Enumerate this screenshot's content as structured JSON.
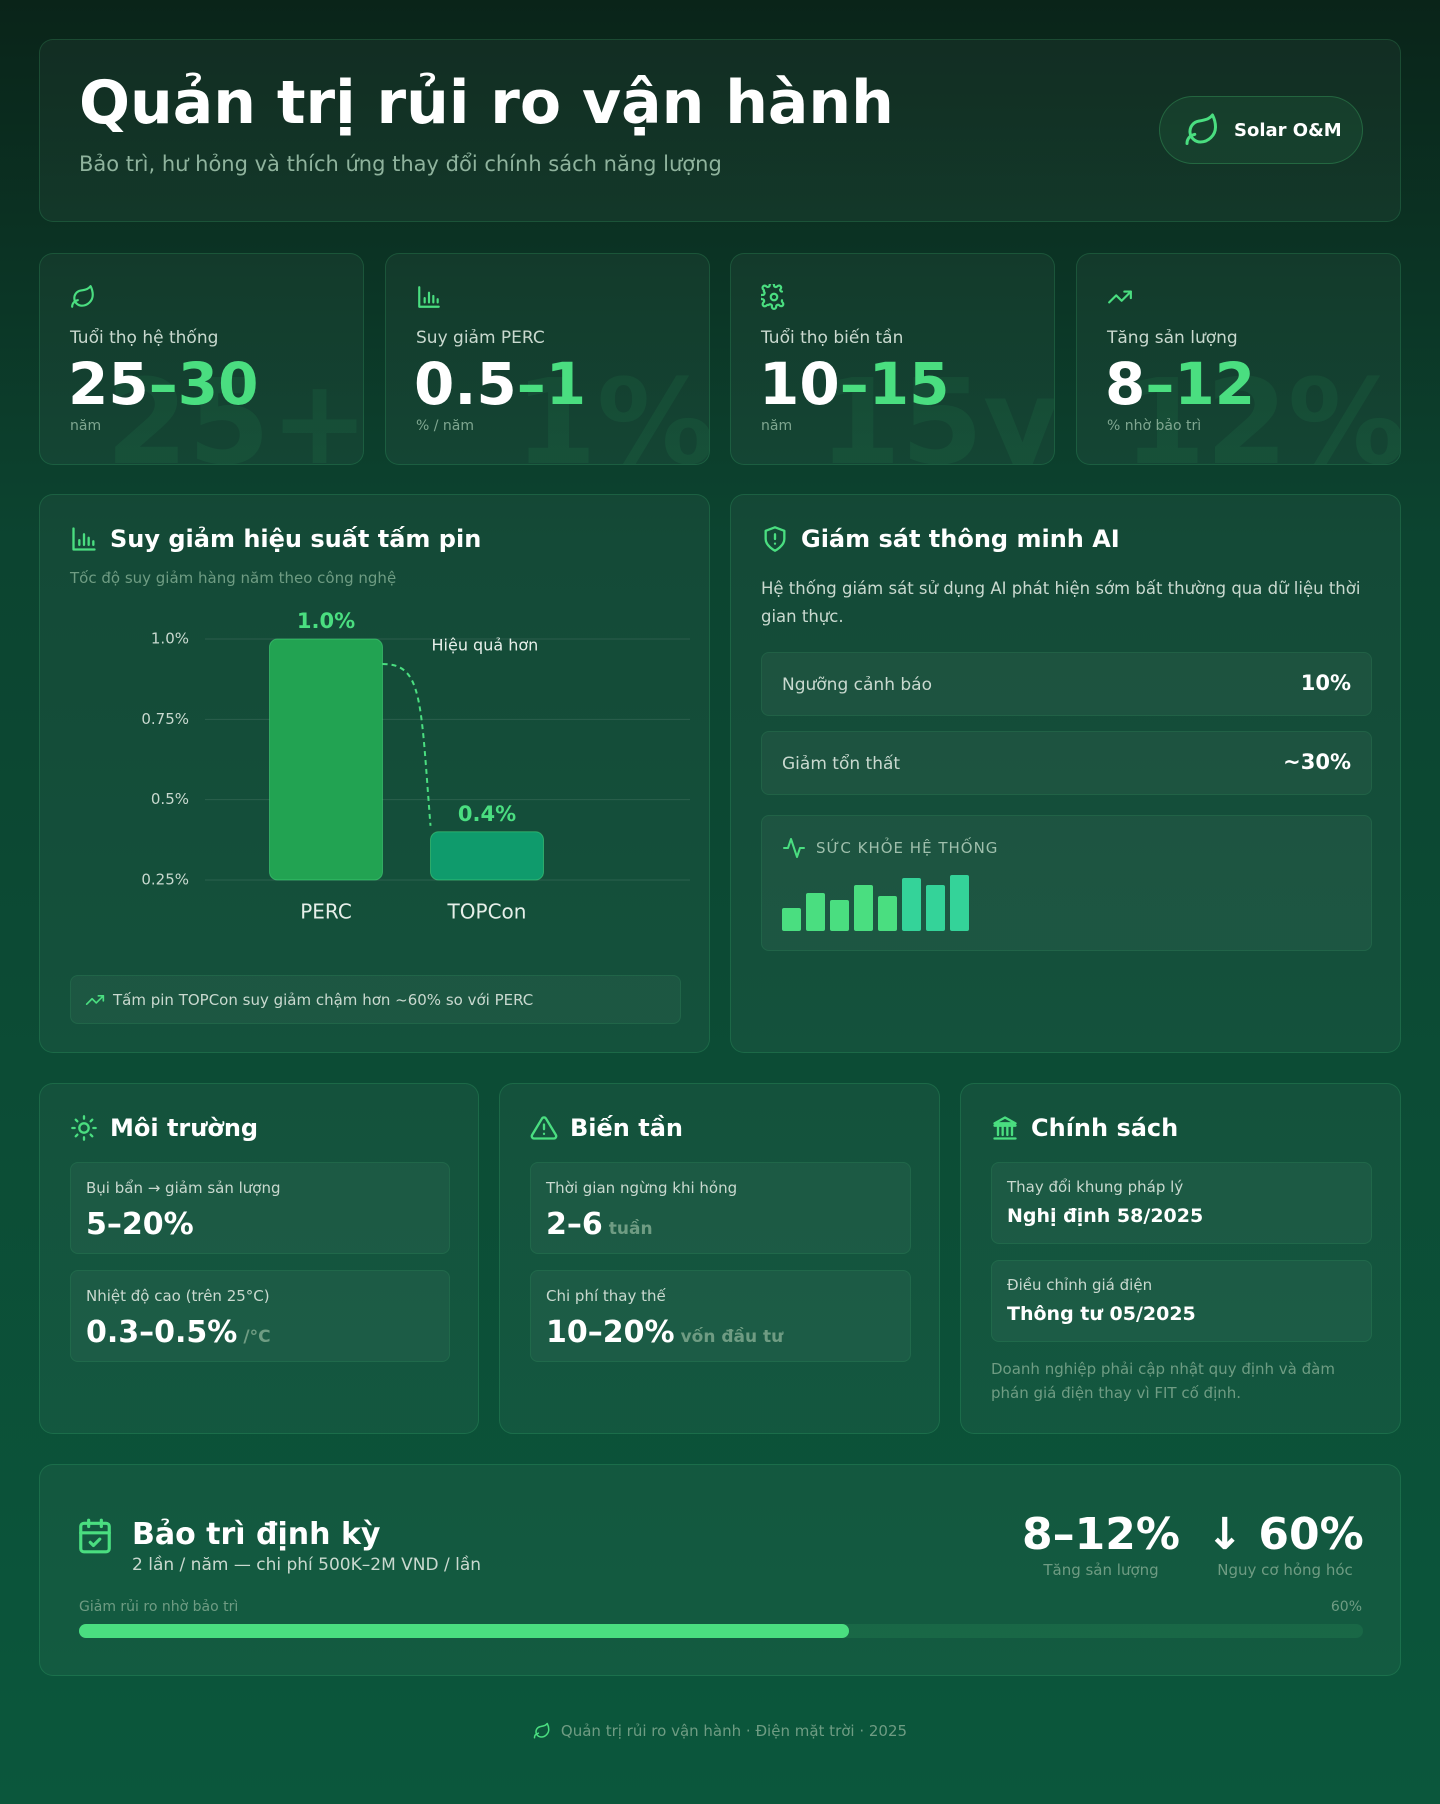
{
  "header": {
    "title": "Quản trị rủi ro vận hành",
    "subtitle": "Bảo trì, hư hỏng và thích ứng thay đổi chính sách năng lượng",
    "badge": "Solar O&M"
  },
  "stats": [
    {
      "label": "Tuổi thọ hệ thống",
      "value_main": "25",
      "value_accent": "–30",
      "unit": "năm",
      "watermark": "25+"
    },
    {
      "label": "Suy giảm PERC",
      "value_main": "0.5",
      "value_accent": "–1",
      "unit": "% / năm",
      "watermark": "1%"
    },
    {
      "label": "Tuổi thọ biến tần",
      "value_main": "10",
      "value_accent": "–15",
      "unit": "năm",
      "watermark": "15y"
    },
    {
      "label": "Tăng sản lượng",
      "value_main": "8",
      "value_accent": "–12",
      "unit": "% nhờ bảo trì",
      "watermark": "12%"
    }
  ],
  "chart_data": {
    "type": "bar",
    "title": "Suy giảm hiệu suất tấm pin",
    "subtitle": "Tốc độ suy giảm hàng năm theo công nghệ",
    "categories": [
      "PERC",
      "TOPCon"
    ],
    "values": [
      1.0,
      0.4
    ],
    "value_labels": [
      "1.0%",
      "0.4%"
    ],
    "colors": [
      "#22a352",
      "#0f9b6c"
    ],
    "ylim": [
      0.25,
      1.0
    ],
    "yticks": [
      {
        "value": 1.0,
        "label": "1.0%"
      },
      {
        "value": 0.75,
        "label": "0.75%"
      },
      {
        "value": 0.5,
        "label": "0.5%"
      },
      {
        "value": 0.25,
        "label": "0.25%"
      }
    ],
    "grid": true,
    "annotation": "Hiệu quả hơn",
    "note": "Tấm pin TOPCon suy giảm chậm hơn ~60% so với PERC"
  },
  "ai": {
    "title": "Giám sát thông minh AI",
    "description": "Hệ thống giám sát sử dụng AI phát hiện sớm bất thường qua dữ liệu thời gian thực.",
    "metrics": [
      {
        "label": "Ngưỡng cảnh báo",
        "value": "10%"
      },
      {
        "label": "Giảm tổn thất",
        "value": "~30%"
      }
    ],
    "health_label": "SỨC KHỎE HỆ THỐNG"
  },
  "environment": {
    "title": "Môi trường",
    "items": [
      {
        "label": "Bụi bẩn → giảm sản lượng",
        "value": "5–20%"
      },
      {
        "label": "Nhiệt độ cao (trên 25°C)",
        "value": "0.3–0.5%",
        "unit": "/°C"
      }
    ]
  },
  "inverter": {
    "title": "Biến tần",
    "items": [
      {
        "label": "Thời gian ngừng khi hỏng",
        "value": "2–6",
        "unit": "tuần"
      },
      {
        "label": "Chi phí thay thế",
        "value": "10–20%",
        "unit": "vốn đầu tư"
      }
    ]
  },
  "policy": {
    "title": "Chính sách",
    "items": [
      {
        "label": "Thay đổi khung pháp lý",
        "value": "Nghị định 58/2025"
      },
      {
        "label": "Điều chỉnh giá điện",
        "value": "Thông tư 05/2025"
      }
    ],
    "note": "Doanh nghiệp phải cập nhật quy định và đàm phán giá điện thay vì FIT cố định."
  },
  "maintenance": {
    "title": "Bảo trì định kỳ",
    "subtitle": "2 lần / năm — chi phí 500K–2M VND / lần",
    "stats": [
      {
        "value": "8–12%",
        "label": "Tăng sản lượng"
      },
      {
        "value": "↓ 60%",
        "label": "Nguy cơ hỏng hóc"
      }
    ],
    "progress": {
      "label": "Giảm rủi ro nhờ bảo trì",
      "value": 60,
      "value_label": "60%"
    }
  },
  "footer": "Quản trị rủi ro vận hành · Điện mặt trời · 2025"
}
